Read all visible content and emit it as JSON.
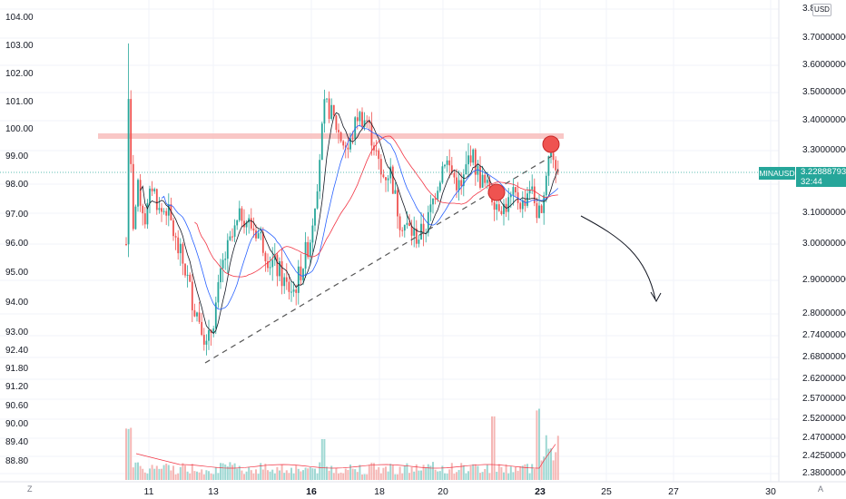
{
  "chart_data": {
    "type": "candlestick",
    "symbol": "MINAUSD",
    "last_price": "3.22888793",
    "countdown": "32:44",
    "currency_button": "USD",
    "left_axis": {
      "ticks": [
        "104.00",
        "103.00",
        "102.00",
        "101.00",
        "100.00",
        "99.00",
        "98.00",
        "97.00",
        "96.00",
        "95.00",
        "94.00",
        "93.00",
        "92.40",
        "91.80",
        "91.20",
        "90.60",
        "90.00",
        "89.40",
        "88.80"
      ]
    },
    "right_axis": {
      "ticks": [
        "3.8",
        "3.70000000",
        "3.60000000",
        "3.50000000",
        "3.40000000",
        "3.30000000",
        "3.20000000",
        "3.10000000",
        "3.00000000",
        "2.90000000",
        "2.80000000",
        "2.74000000",
        "2.68000000",
        "2.62000000",
        "2.57000000",
        "2.52000000",
        "2.47000000",
        "2.42500000",
        "2.38000000"
      ]
    },
    "x_axis": {
      "ticks": [
        {
          "label": "11",
          "bold": false
        },
        {
          "label": "13",
          "bold": false
        },
        {
          "label": "16",
          "bold": true
        },
        {
          "label": "18",
          "bold": false
        },
        {
          "label": "20",
          "bold": false
        },
        {
          "label": "23",
          "bold": true
        },
        {
          "label": "25",
          "bold": false
        },
        {
          "label": "27",
          "bold": false
        },
        {
          "label": "30",
          "bold": false
        }
      ]
    },
    "buttons": {
      "log_toggle": "Z",
      "auto_scale": "A"
    },
    "colors": {
      "up": "#26a69a",
      "down": "#ef5350",
      "ma_fast": "#131722",
      "ma_mid": "#2962ff",
      "ma_slow": "#f23645"
    },
    "annotations": {
      "resistance_zone": {
        "price": 3.34
      },
      "rising_trendline": {
        "from_price": 2.68,
        "to_price": 3.28
      },
      "projected_path": "down",
      "circle_markers": 2
    }
  }
}
